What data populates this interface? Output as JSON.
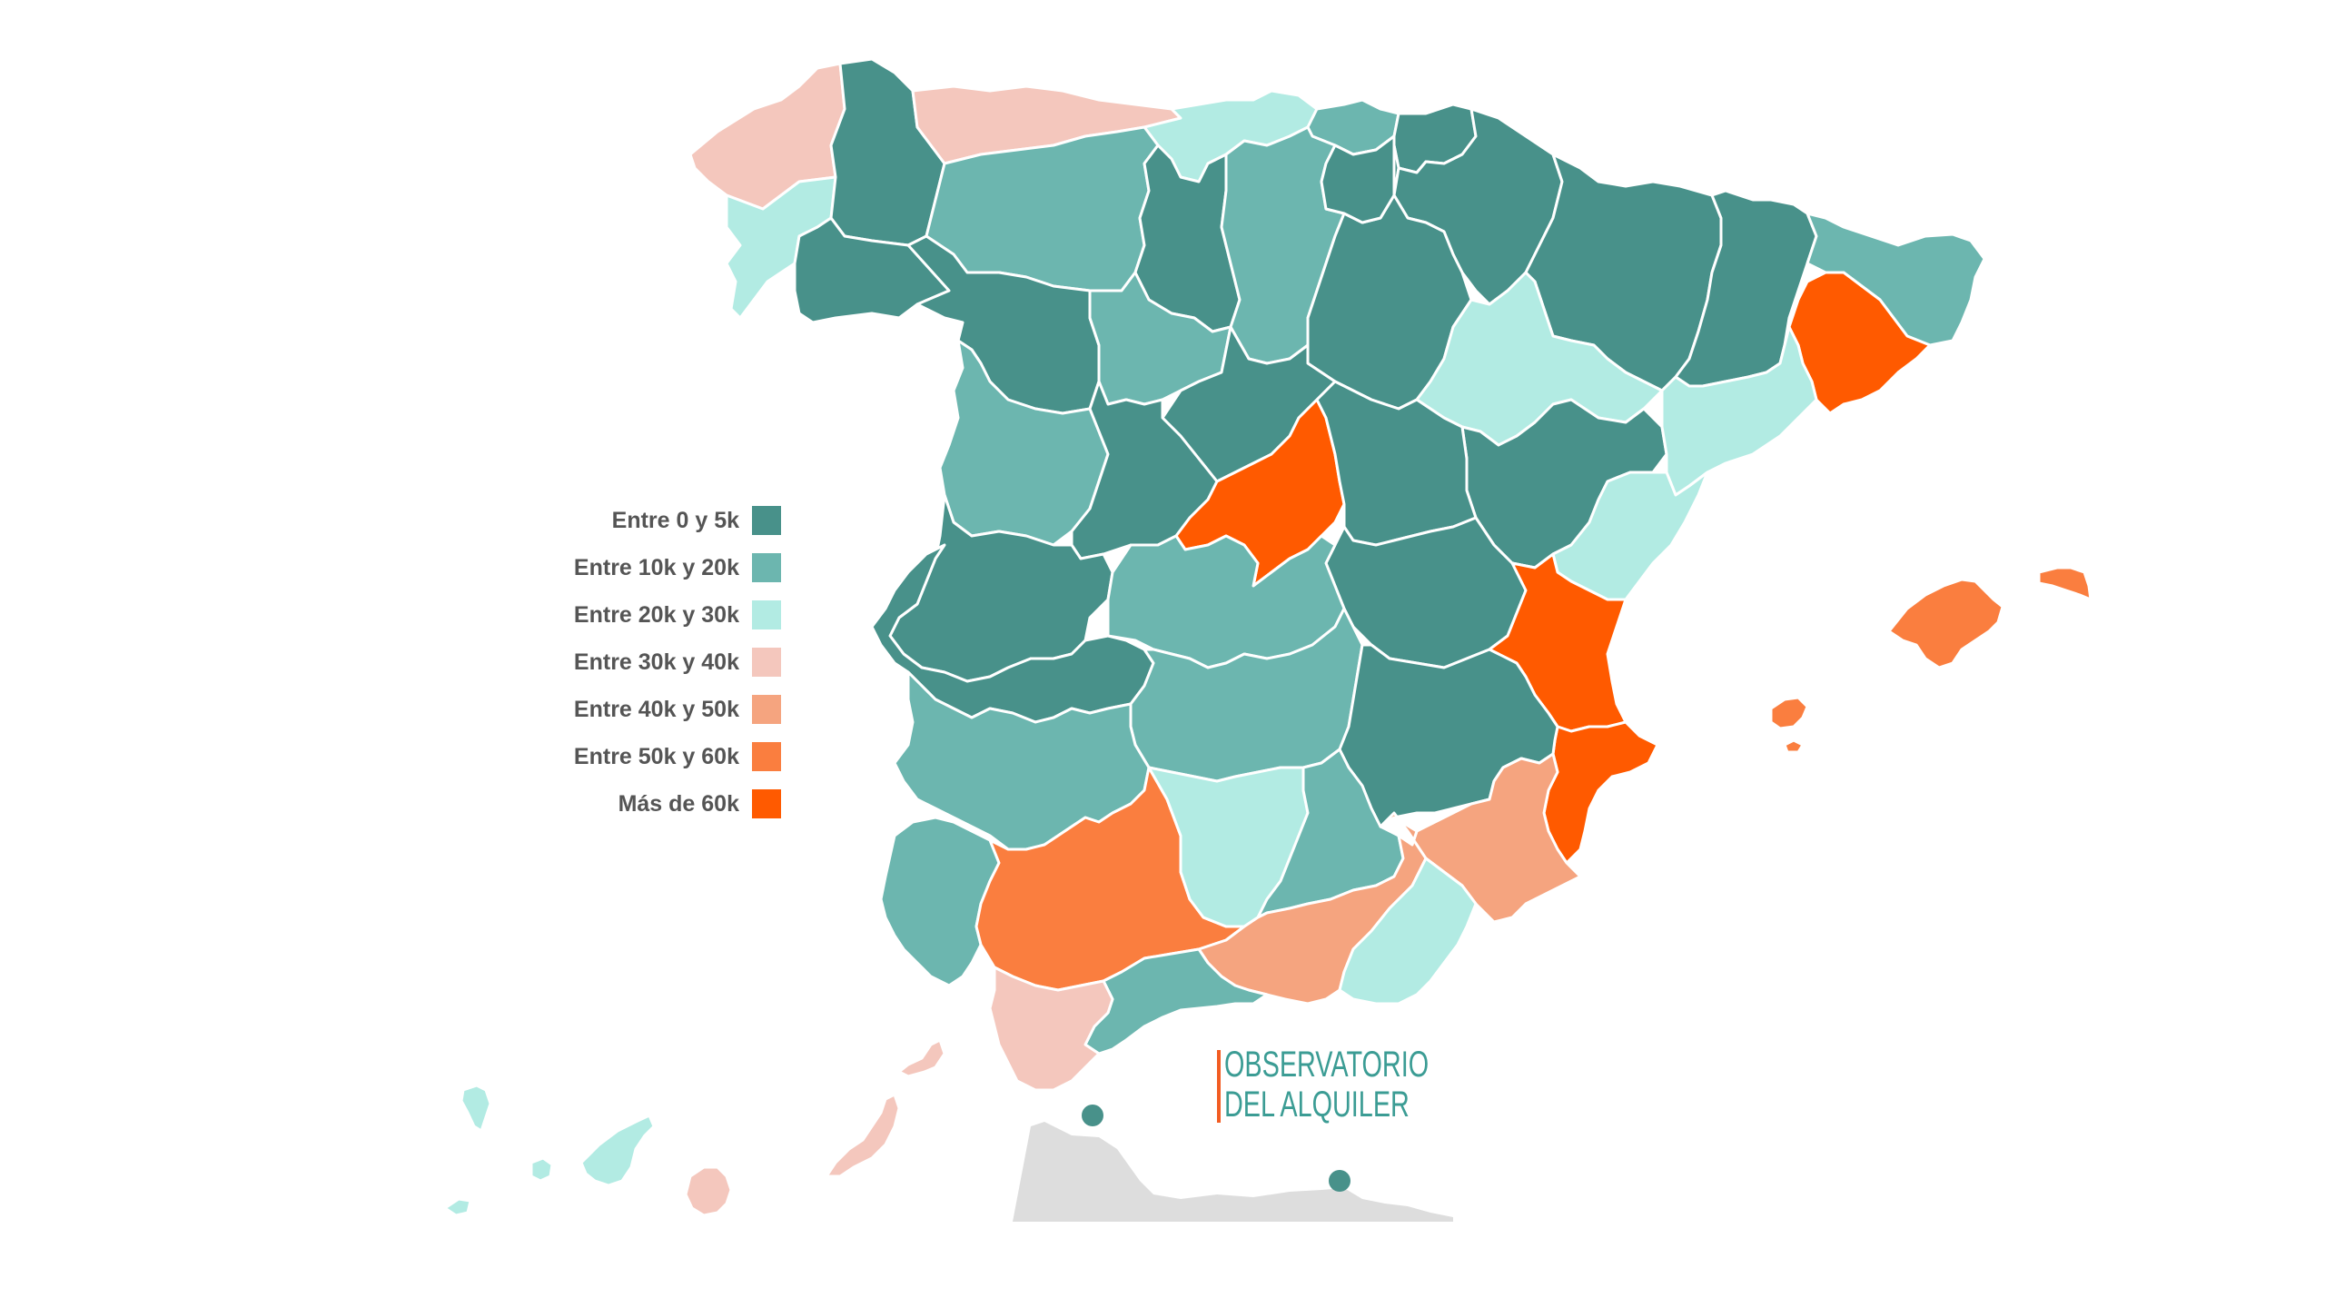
{
  "colors": {
    "c0_5k": "#48918a",
    "c10_20k": "#6cb6af",
    "c20_30k": "#b2ebe3",
    "c30_40k": "#f4c7bd",
    "c40_50k": "#f5a47f",
    "c50_60k": "#fa7e3f",
    "c60k_plus": "#ff5a00",
    "africa_gray": "#dddddd",
    "city_dot": "#48918a",
    "logo_accent": "#f25c22",
    "logo_text": "#3b9c94"
  },
  "legend": [
    {
      "label": "Entre 0 y 5k",
      "color": "#48918a"
    },
    {
      "label": "Entre 10k y 20k",
      "color": "#6cb6af"
    },
    {
      "label": "Entre 20k y 30k",
      "color": "#b2ebe3"
    },
    {
      "label": "Entre 30k y 40k",
      "color": "#f4c7bd"
    },
    {
      "label": "Entre 40k y 50k",
      "color": "#f5a47f"
    },
    {
      "label": "Entre 50k y 60k",
      "color": "#fa7e3f"
    },
    {
      "label": "Más de 60k",
      "color": "#ff5a00"
    }
  ],
  "logo": {
    "line1": "OBSERVATORIO",
    "line2": "DEL ALQUILER"
  }
}
